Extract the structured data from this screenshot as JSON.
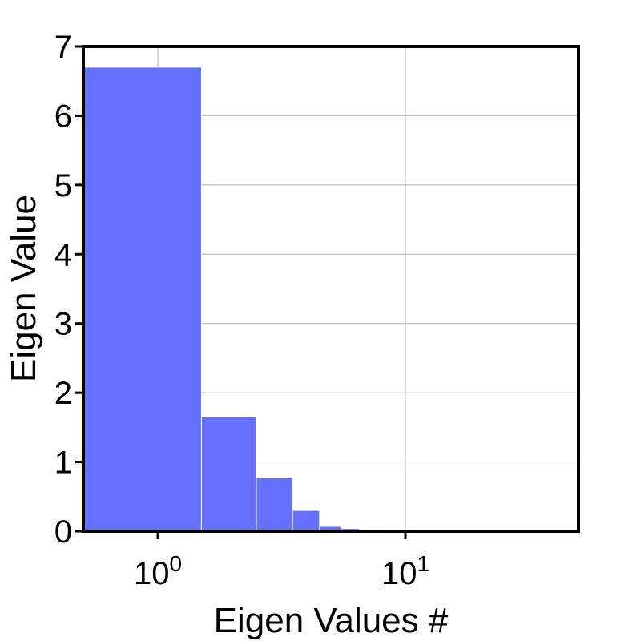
{
  "chart_data": {
    "type": "bar",
    "xlabel": "Eigen Values #",
    "ylabel": "Eigen Value",
    "x_scale": "log",
    "xlim": [
      0.5,
      50
    ],
    "ylim": [
      0,
      7
    ],
    "grid": true,
    "bar_color": "#6670ff",
    "x": [
      1,
      2,
      3,
      4,
      5,
      6,
      7,
      8,
      9,
      10,
      11,
      12,
      13,
      14,
      15,
      16,
      17,
      18,
      19,
      20,
      21,
      22,
      23,
      24,
      25,
      26,
      27,
      28,
      29,
      30,
      31,
      32,
      33,
      34,
      35,
      36,
      37,
      38,
      39,
      40,
      41,
      42,
      43,
      44,
      45,
      46,
      47,
      48,
      49,
      50
    ],
    "values": [
      6.7,
      1.65,
      0.77,
      0.3,
      0.07,
      0.04,
      0.03,
      0.02,
      0.018,
      0.015,
      0.013,
      0.012,
      0.011,
      0.01,
      0.009,
      0.008,
      0.007,
      0.006,
      0.005,
      0.005,
      0.004,
      0.004,
      0.004,
      0.003,
      0.003,
      0.003,
      0.003,
      0.002,
      0.002,
      0.002,
      0.002,
      0.002,
      0.002,
      0.001,
      0.001,
      0.001,
      0.001,
      0.001,
      0.001,
      0.001,
      0.001,
      0.001,
      0.001,
      0.001,
      0.001,
      0.001,
      0.001,
      0.001,
      0.001,
      0.001
    ],
    "y_ticks": [
      "0",
      "1",
      "2",
      "3",
      "4",
      "5",
      "6",
      "7"
    ],
    "x_ticks": [
      {
        "value": 1,
        "base": "10",
        "exp": "0"
      },
      {
        "value": 10,
        "base": "10",
        "exp": "1"
      }
    ]
  }
}
